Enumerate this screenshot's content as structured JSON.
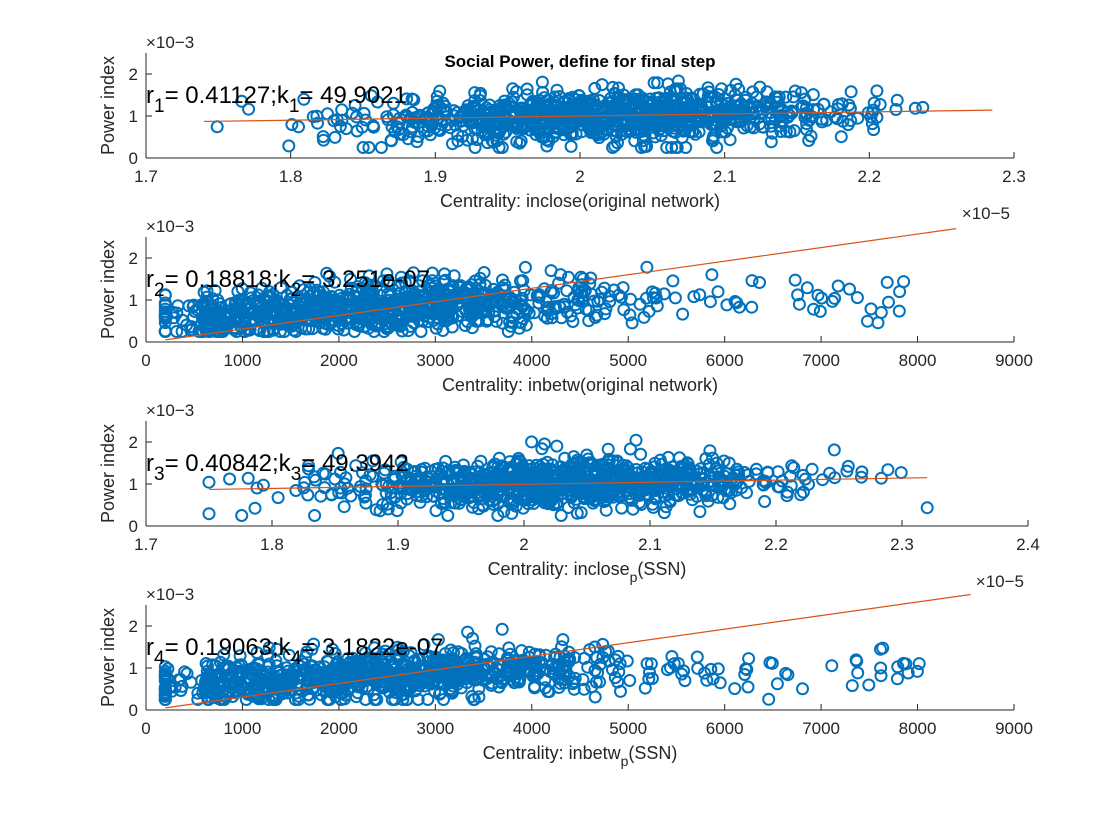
{
  "title": "Social Power, define for final step",
  "colors": {
    "marker": "#0072BD",
    "fit_line": "#D95319",
    "axis": "#262626",
    "background": "#ffffff"
  },
  "chart_data": [
    {
      "type": "scatter",
      "xlabel": "Centrality: inclose(original network)",
      "ylabel": "Power index",
      "y_exponent": "×10−3",
      "x_exponent": "×10−5",
      "xlim": [
        1.7,
        2.3
      ],
      "ylim": [
        0,
        2.5
      ],
      "xticks": [
        "1.7",
        "1.8",
        "1.9",
        "2",
        "2.1",
        "2.2",
        "2.3"
      ],
      "yticks": [
        "0",
        "1",
        "2"
      ],
      "annotation": {
        "r_sub": "1",
        "r_value": "= 0.41127;k",
        "k_sub": "1",
        "k_value": "= 49.9021"
      },
      "x_center": 2.02,
      "x_sd": 0.085,
      "x_min": 1.74,
      "x_max": 2.285,
      "y_noise": 0.3,
      "n_points": 950,
      "fit": {
        "x": [
          1.74,
          2.285
        ],
        "y": [
          0.87,
          1.14
        ]
      }
    },
    {
      "type": "scatter",
      "xlabel": "Centrality: inbetw(original network)",
      "ylabel": "Power index",
      "y_exponent": "×10−3",
      "x_exponent": "",
      "xlim": [
        0,
        9000
      ],
      "ylim": [
        0,
        2.5
      ],
      "xticks": [
        "0",
        "1000",
        "2000",
        "3000",
        "4000",
        "5000",
        "6000",
        "7000",
        "8000",
        "9000"
      ],
      "yticks": [
        "0",
        "1",
        "2"
      ],
      "annotation": {
        "r_sub": "2",
        "r_value": "= 0.18818;k",
        "k_sub": "2",
        "k_value": "= 3.251e-07"
      },
      "x_center": 2400,
      "x_sd": 1150,
      "x_min": 200,
      "x_max": 8400,
      "y_noise": 0.3,
      "n_points": 950,
      "fit": {
        "x": [
          200,
          8400
        ],
        "y": [
          0.05,
          2.7
        ]
      }
    },
    {
      "type": "scatter",
      "xlabel": "Centrality: inclose",
      "xlabel_sub": "p",
      "xlabel_tail": "(SSN)",
      "ylabel": "Power index",
      "y_exponent": "×10−3",
      "x_exponent": "×10−5",
      "xlim": [
        1.7,
        2.4
      ],
      "ylim": [
        0,
        2.5
      ],
      "xticks": [
        "1.7",
        "1.8",
        "1.9",
        "2",
        "2.1",
        "2.2",
        "2.3",
        "2.4"
      ],
      "yticks": [
        "0",
        "1",
        "2"
      ],
      "annotation": {
        "r_sub": "3",
        "r_value": "= 0.40842;k",
        "k_sub": "3",
        "k_value": "= 49.3942"
      },
      "x_center": 2.03,
      "x_sd": 0.09,
      "x_min": 1.75,
      "x_max": 2.32,
      "y_noise": 0.3,
      "n_points": 950,
      "fit": {
        "x": [
          1.75,
          2.32
        ],
        "y": [
          0.87,
          1.15
        ]
      }
    },
    {
      "type": "scatter",
      "xlabel": "Centrality: inbetw",
      "xlabel_sub": "p",
      "xlabel_tail": "(SSN)",
      "ylabel": "Power index",
      "y_exponent": "×10−3",
      "x_exponent": "",
      "xlim": [
        0,
        9000
      ],
      "ylim": [
        0,
        2.5
      ],
      "xticks": [
        "0",
        "1000",
        "2000",
        "3000",
        "4000",
        "5000",
        "6000",
        "7000",
        "8000",
        "9000"
      ],
      "yticks": [
        "0",
        "1",
        "2"
      ],
      "annotation": {
        "r_sub": "4",
        "r_value": "= 0.19063;k",
        "k_sub": "4",
        "k_value": "= 3.1822e-07"
      },
      "x_center": 2500,
      "x_sd": 1200,
      "x_min": 200,
      "x_max": 8550,
      "y_noise": 0.3,
      "n_points": 950,
      "fit": {
        "x": [
          200,
          8550
        ],
        "y": [
          0.05,
          2.75
        ]
      }
    }
  ]
}
